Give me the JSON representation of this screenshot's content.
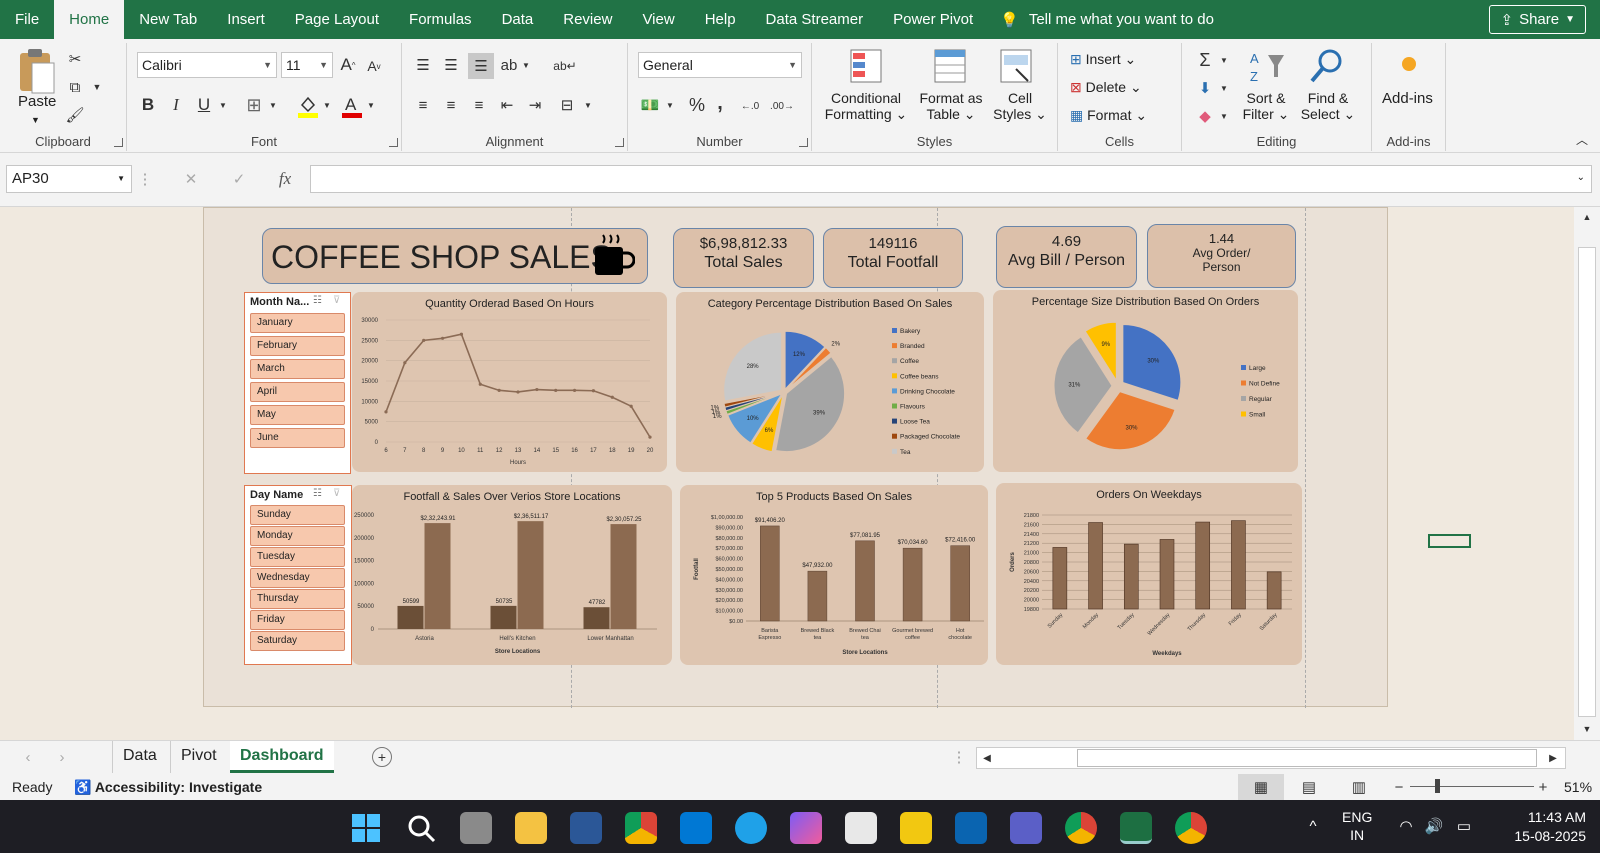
{
  "menu": {
    "tabs": [
      "File",
      "Home",
      "New Tab",
      "Insert",
      "Page Layout",
      "Formulas",
      "Data",
      "Review",
      "View",
      "Help",
      "Data Streamer",
      "Power Pivot"
    ],
    "active": "Home",
    "tell_me": "Tell me what you want to do",
    "share": "Share"
  },
  "ribbon": {
    "clipboard": {
      "label": "Clipboard",
      "paste": "Paste"
    },
    "font": {
      "label": "Font",
      "name": "Calibri",
      "size": "11",
      "bold": "B",
      "italic": "I",
      "underline": "U"
    },
    "alignment": {
      "label": "Alignment"
    },
    "number": {
      "label": "Number",
      "format": "General",
      "percent": "%",
      "comma": ","
    },
    "styles": {
      "label": "Styles",
      "conditional": "Conditional",
      "conditional2": "Formatting",
      "format_table": "Format as",
      "format_table2": "Table",
      "cell_styles": "Cell",
      "cell_styles2": "Styles"
    },
    "cells": {
      "label": "Cells",
      "insert": "Insert",
      "delete": "Delete",
      "format": "Format"
    },
    "editing": {
      "label": "Editing",
      "sort": "Sort &",
      "sort2": "Filter",
      "find": "Find &",
      "find2": "Select"
    },
    "addins": {
      "label": "Add-ins",
      "addins": "Add-ins"
    }
  },
  "formula_bar": {
    "name_box": "AP30",
    "fx": "fx",
    "value": ""
  },
  "dashboard": {
    "title": "COFFEE SHOP SALES",
    "kpis": [
      {
        "value": "$6,98,812.33",
        "label": "Total Sales"
      },
      {
        "value": "149116",
        "label": "Total Footfall"
      },
      {
        "value": "4.69",
        "label": "Avg Bill / Person"
      },
      {
        "value": "1.44",
        "label": "Avg Order/",
        "label2": "Person"
      }
    ],
    "month_slicer": {
      "header": "Month Na...",
      "items": [
        "January",
        "February",
        "March",
        "April",
        "May",
        "June"
      ]
    },
    "day_slicer": {
      "header": "Day Name",
      "items": [
        "Sunday",
        "Monday",
        "Tuesday",
        "Wednesday",
        "Thursday",
        "Friday",
        "Saturday"
      ]
    }
  },
  "chart_data": [
    {
      "type": "line",
      "title": "Quantity Orderad Based  On Hours",
      "xlabel": "Hours",
      "ylabel": "",
      "x": [
        6,
        7,
        8,
        9,
        10,
        11,
        12,
        13,
        14,
        15,
        16,
        17,
        18,
        19,
        20
      ],
      "values": [
        7400,
        19500,
        25000,
        25500,
        26500,
        14200,
        12700,
        12300,
        12900,
        12700,
        12700,
        12600,
        11000,
        8800,
        1200
      ],
      "yticks": [
        "0",
        "5000",
        "10000",
        "15000",
        "20000",
        "25000",
        "30000"
      ],
      "ylim": [
        0,
        30000
      ]
    },
    {
      "type": "pie",
      "title": "Category Percentage Distribution Based On Sales",
      "labels": [
        "Bakery",
        "Branded",
        "Coffee",
        "Coffee beans",
        "Drinking Chocolate",
        "Flavours",
        "Loose Tea",
        "Packaged Chocolate",
        "Tea"
      ],
      "values": [
        12,
        2,
        39,
        6,
        10,
        1,
        1,
        1,
        28
      ],
      "slice_labels": [
        "12%",
        "2%",
        "39%",
        "6%",
        "10%",
        "1%",
        "1%",
        "1%",
        "28%"
      ],
      "colors": [
        "#4472c4",
        "#ed7d31",
        "#a5a5a5",
        "#ffc000",
        "#5b9bd5",
        "#70ad47",
        "#264478",
        "#9e480e",
        "#c9c9c9"
      ],
      "legend": "right"
    },
    {
      "type": "pie",
      "title": "Percentage Size Distribution Based On Orders",
      "labels": [
        "Large",
        "Not Define",
        "Regular",
        "Small"
      ],
      "values": [
        30,
        30,
        31,
        9
      ],
      "slice_labels": [
        "30%",
        "30%",
        "31%",
        "9%"
      ],
      "colors": [
        "#4472c4",
        "#ed7d31",
        "#a5a5a5",
        "#ffc000"
      ],
      "legend": "right"
    },
    {
      "type": "bar",
      "title": "Footfall & Sales Over Verios Store Locations",
      "xlabel": "Store Locations",
      "categories": [
        "Astoria",
        "Hell's Kitchen",
        "Lower Manhattan"
      ],
      "series": [
        {
          "values": [
            50599,
            50735,
            47782
          ],
          "labels": [
            "50599",
            "50735",
            "47782"
          ],
          "color": "#6b4f37"
        },
        {
          "values": [
            232243.91,
            236511.17,
            230057.25
          ],
          "labels": [
            "$2,32,243.91",
            "$2,36,511.17",
            "$2,30,057.25"
          ],
          "color": "#8c6a50"
        }
      ],
      "yticks": [
        "0",
        "50000",
        "100000",
        "150000",
        "200000",
        "250000"
      ],
      "ylim": [
        0,
        250000
      ]
    },
    {
      "type": "bar",
      "title": "Top 5 Products Based On Sales",
      "xlabel": "Store Locations",
      "ylabel": "Footfall",
      "categories": [
        "Barista Espresso",
        "Brewed Black tea",
        "Brewed Chai tea",
        "Gourmet brewed coffee",
        "Hot chocolate"
      ],
      "values": [
        91406.2,
        47932,
        77081.95,
        70034.6,
        72416
      ],
      "labels": [
        "$91,406.20",
        "$47,932.00",
        "$77,081.95",
        "$70,034.60",
        "$72,416.00"
      ],
      "yticks": [
        "$0.00",
        "$10,000.00",
        "$20,000.00",
        "$30,000.00",
        "$40,000.00",
        "$50,000.00",
        "$60,000.00",
        "$70,000.00",
        "$80,000.00",
        "$90,000.00",
        "$1,00,000.00"
      ],
      "ylim": [
        0,
        100000
      ]
    },
    {
      "type": "bar",
      "title": "Orders On Weekdays",
      "xlabel": "Weekdays",
      "ylabel": "Orders",
      "categories": [
        "Sunday",
        "Monday",
        "Tuesday",
        "Wednesday",
        "Thursday",
        "Friday",
        "Saturday"
      ],
      "values": [
        21110,
        21640,
        21180,
        21280,
        21650,
        21680,
        20590
      ],
      "yticks": [
        "19800",
        "20000",
        "20200",
        "20400",
        "20600",
        "20800",
        "21000",
        "21200",
        "21400",
        "21600",
        "21800"
      ],
      "ylim": [
        19800,
        21800
      ]
    }
  ],
  "sheets": {
    "tabs": [
      "Data",
      "Pivot",
      "Dashboard"
    ],
    "active": "Dashboard"
  },
  "status": {
    "ready": "Ready",
    "accessibility": "Accessibility: Investigate",
    "zoom": "51%"
  },
  "taskbar": {
    "lang": "ENG",
    "lang2": "IN",
    "time": "11:43 AM",
    "date": "15-08-2025"
  }
}
